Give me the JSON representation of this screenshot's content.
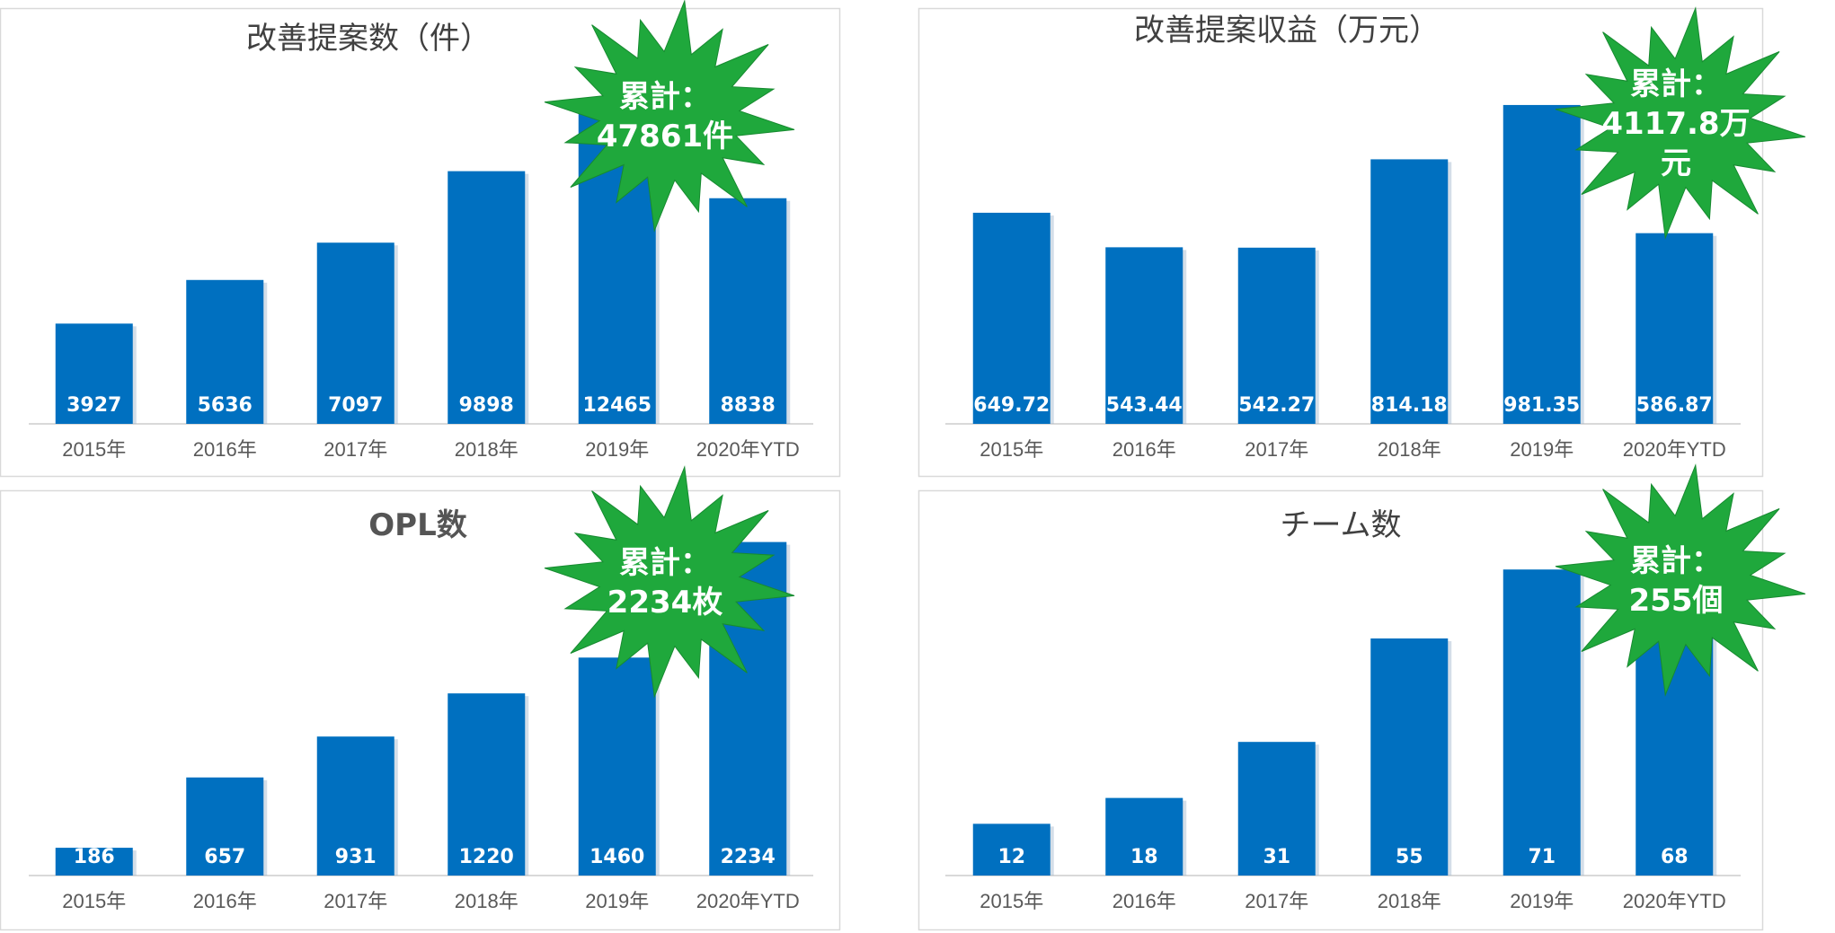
{
  "colors": {
    "bar": "#0070C0",
    "burst": "#1FA83C",
    "border": "#d9d9d9",
    "axis": "#d9d9d9"
  },
  "chart_data": [
    {
      "type": "bar",
      "title": "改善提案数（件）",
      "categories": [
        "2015年",
        "2016年",
        "2017年",
        "2018年",
        "2019年",
        "2020年YTD"
      ],
      "values": [
        3927,
        5636,
        7097,
        9898,
        12465,
        8838
      ],
      "value_labels": [
        "3927",
        "5636",
        "7097",
        "9898",
        "12465",
        "8838"
      ],
      "ylim": [
        0,
        14000
      ],
      "grid": false,
      "callout": [
        "累計：",
        "47861件"
      ]
    },
    {
      "type": "bar",
      "title": "改善提案収益（万元）",
      "categories": [
        "2015年",
        "2016年",
        "2017年",
        "2018年",
        "2019年",
        "2020年YTD"
      ],
      "values": [
        649.72,
        543.44,
        542.27,
        814.18,
        981.35,
        586.87
      ],
      "value_labels": [
        "649.72",
        "543.44",
        "542.27",
        "814.18",
        "981.35",
        "586.87"
      ],
      "ylim": [
        0,
        1100
      ],
      "grid": false,
      "callout": [
        "累計：",
        "4117.8万",
        "元"
      ]
    },
    {
      "type": "bar",
      "title": "OPL数",
      "categories": [
        "2015年",
        "2016年",
        "2017年",
        "2018年",
        "2019年",
        "2020年YTD"
      ],
      "values": [
        186,
        657,
        931,
        1220,
        1460,
        2234
      ],
      "value_labels": [
        "186",
        "657",
        "931",
        "1220",
        "1460",
        "2234"
      ],
      "ylim": [
        0,
        2400
      ],
      "grid": false,
      "callout": [
        "累計：",
        "2234枚"
      ]
    },
    {
      "type": "bar",
      "title": "チーム数",
      "categories": [
        "2015年",
        "2016年",
        "2017年",
        "2018年",
        "2019年",
        "2020年YTD"
      ],
      "values": [
        12,
        18,
        31,
        55,
        71,
        68
      ],
      "value_labels": [
        "12",
        "18",
        "31",
        "55",
        "71",
        "68"
      ],
      "ylim": [
        0,
        80
      ],
      "grid": false,
      "callout": [
        "累計：",
        "255個"
      ]
    }
  ]
}
